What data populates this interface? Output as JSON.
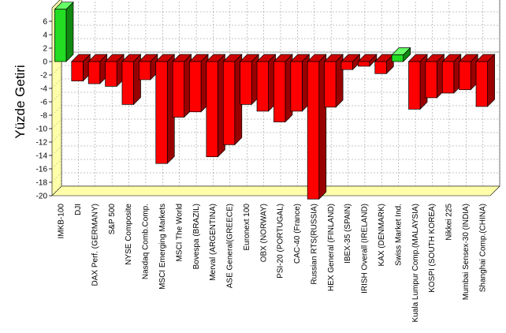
{
  "chart_data": {
    "type": "bar",
    "ylabel": "Yüzde Getiri",
    "ylim": [
      -20,
      8
    ],
    "yticks": [
      6,
      4,
      2,
      0,
      -2,
      -4,
      -6,
      -8,
      -10,
      -12,
      -14,
      -16,
      -18,
      -20
    ],
    "grid": true,
    "categories": [
      "IMKB-100",
      "DJI",
      "DAX Perf. (GERMANY)",
      "S&P 500",
      "NYSE Composite",
      "Nasdaq Comb.Comp.",
      "MSCI Emerging Markets",
      "MSCI The World",
      "Bovespa (BRAZIL)",
      "Merval (ARGENTINA)",
      "ASE General(GREECE)",
      "Euronext 100",
      "OBX (NORWAY)",
      "PSI-20 (PORTUGAL)",
      "CAC-40 (France)",
      "Russian RTS(RUSSIA)",
      "HEX General (FINLAND)",
      "IBEX-35 (SPAIN)",
      "IRISH Overall (IRELAND)",
      "KAX (DENMARK)",
      "Swiss Market Ind.",
      "Kuala Lumpur Comp.(MALAYSIA)",
      "KOSPI (SOUTH KOREA)",
      "Nikkei 225",
      "Mumbai Sensex-30 (INDIA)",
      "Shanghai Comp.(CHINA)"
    ],
    "values": [
      7.8,
      -2.9,
      -3.3,
      -3.7,
      -6.4,
      -2.7,
      -15.2,
      -8.3,
      -7.5,
      -14.2,
      -12.4,
      -6.4,
      -7.4,
      -9.0,
      -7.4,
      -20.5,
      -6.8,
      -1.2,
      -0.7,
      -1.8,
      1.0,
      -7.1,
      -5.4,
      -4.7,
      -4.2,
      -6.7
    ],
    "colors": {
      "positive": "#22dd22",
      "negative": "#ff0000"
    }
  }
}
